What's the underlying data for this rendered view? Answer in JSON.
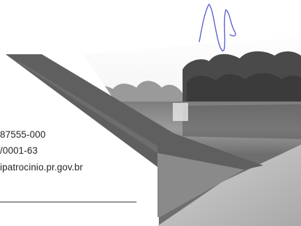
{
  "contact": {
    "cep_line": "87555-000",
    "cnpj_line": "/0001-63",
    "site_line": "ipatrocinio.pr.gov.br"
  },
  "colors": {
    "text": "#222222",
    "signature_ink": "#5a5fd0",
    "dark_band": "#5f5f5f",
    "light_band": "#b9b9b9",
    "water": "#8c8c8c",
    "trees": "#4a4a4a"
  },
  "icons": {
    "signature": "handwritten-signature"
  }
}
